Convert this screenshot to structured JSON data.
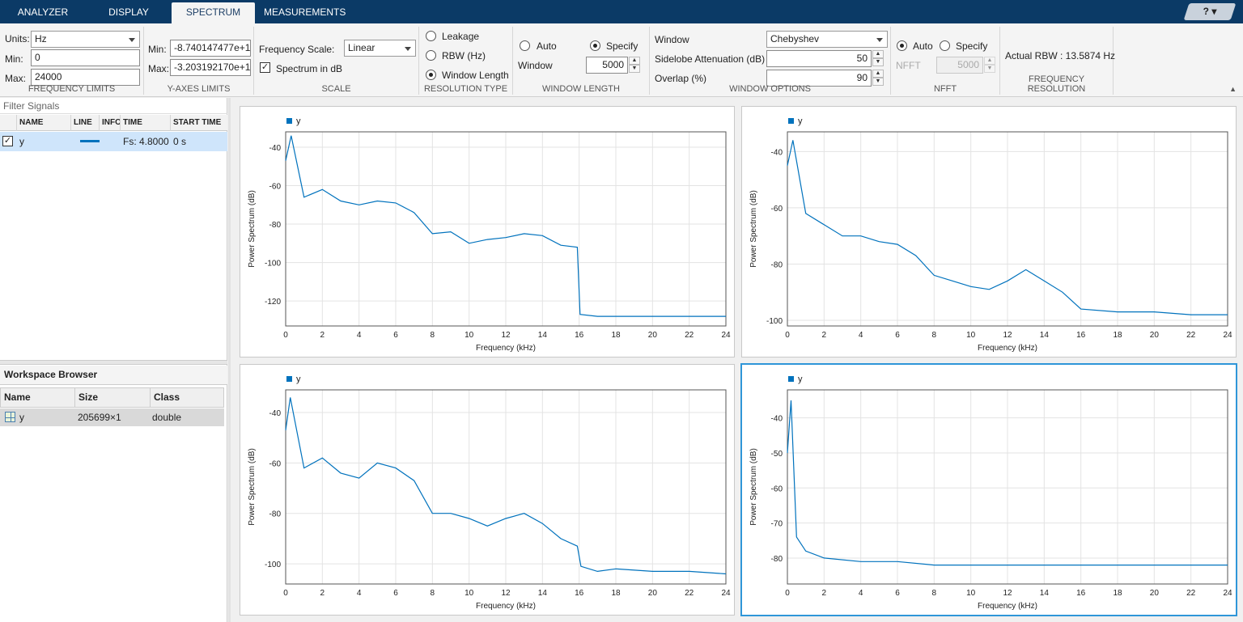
{
  "tabs": [
    {
      "label": "ANALYZER"
    },
    {
      "label": "DISPLAY"
    },
    {
      "label": "SPECTRUM",
      "active": true
    },
    {
      "label": "MEASUREMENTS"
    }
  ],
  "help": {
    "icon": "question-icon",
    "label": "?"
  },
  "ribbon": {
    "frequency_limits": {
      "units_label": "Units:",
      "units_value": "Hz",
      "min_label": "Min:",
      "min_value": "0",
      "max_label": "Max:",
      "max_value": "24000",
      "title": "FREQUENCY LIMITS"
    },
    "y_axes_limits": {
      "min_label": "Min:",
      "min_value": "-8.740147477e+1",
      "max_label": "Max:",
      "max_value": "-3.203192170e+1",
      "title": "Y-AXES LIMITS"
    },
    "scale": {
      "freq_scale_label": "Frequency Scale:",
      "freq_scale_value": "Linear",
      "spectrum_db_label": "Spectrum in dB",
      "spectrum_db_checked": true,
      "title": "SCALE"
    },
    "resolution_type": {
      "options": [
        "Leakage",
        "RBW (Hz)",
        "Window Length"
      ],
      "selected": "Window Length",
      "title": "RESOLUTION TYPE"
    },
    "window_length": {
      "auto_label": "Auto",
      "specify_label": "Specify",
      "selected": "Specify",
      "window_label": "Window",
      "window_value": "5000",
      "title": "WINDOW LENGTH"
    },
    "window_options": {
      "window_label": "Window",
      "window_value": "Chebyshev",
      "sidelobe_label": "Sidelobe Attenuation (dB)",
      "sidelobe_value": "50",
      "overlap_label": "Overlap (%)",
      "overlap_value": "90",
      "title": "WINDOW OPTIONS"
    },
    "nfft": {
      "auto_label": "Auto",
      "specify_label": "Specify",
      "selected": "Auto",
      "nfft_label": "NFFT",
      "nfft_value": "5000",
      "title": "NFFT"
    },
    "frequency_resolution": {
      "text": "Actual RBW : 13.5874 Hz",
      "title": "FREQUENCY RESOLUTION"
    }
  },
  "signal_table": {
    "filter_placeholder": "Filter Signals",
    "columns": [
      "NAME",
      "LINE",
      "INFO",
      "TIME",
      "START TIME"
    ],
    "rows": [
      {
        "checked": true,
        "name": "y",
        "line_color": "#0072bd",
        "time": "Fs: 4.8000",
        "start_time": "0 s"
      }
    ]
  },
  "workspace": {
    "title": "Workspace Browser",
    "columns": [
      "Name",
      "Size",
      "Class"
    ],
    "rows": [
      {
        "name": "y",
        "size": "205699×1",
        "class": "double",
        "icon": "matrix-icon"
      }
    ]
  },
  "colors": {
    "accent": "#0072bd",
    "tabbar": "#0b3a66",
    "selection": "#2f96d8"
  },
  "chart_data": [
    {
      "type": "line",
      "legend": "y",
      "xlabel": "Frequency (kHz)",
      "ylabel": "Power Spectrum (dB)",
      "xlim": [
        0,
        24
      ],
      "ylim": [
        -133,
        -32
      ],
      "xticks": [
        0,
        2,
        4,
        6,
        8,
        10,
        12,
        14,
        16,
        18,
        20,
        22,
        24
      ],
      "yticks": [
        -40,
        -60,
        -80,
        -100,
        -120
      ],
      "series": [
        {
          "x": [
            0,
            0.3,
            1,
            2,
            3,
            4,
            5,
            6,
            7,
            8,
            9,
            10,
            11,
            12,
            13,
            14,
            15,
            15.9,
            16.05,
            17,
            18,
            20,
            22,
            24
          ],
          "y": [
            -47,
            -34,
            -66,
            -62,
            -68,
            -70,
            -68,
            -69,
            -74,
            -85,
            -84,
            -90,
            -88,
            -87,
            -85,
            -86,
            -91,
            -92,
            -127,
            -128,
            -128,
            -128,
            -128,
            -128
          ]
        }
      ]
    },
    {
      "type": "line",
      "legend": "y",
      "xlabel": "Frequency (kHz)",
      "ylabel": "Power Spectrum (dB)",
      "xlim": [
        0,
        24
      ],
      "ylim": [
        -102,
        -33
      ],
      "xticks": [
        0,
        2,
        4,
        6,
        8,
        10,
        12,
        14,
        16,
        18,
        20,
        22,
        24
      ],
      "yticks": [
        -40,
        -60,
        -80,
        -100
      ],
      "series": [
        {
          "x": [
            0,
            0.3,
            1,
            2,
            3,
            4,
            5,
            6,
            7,
            8,
            9,
            10,
            11,
            12,
            13,
            14,
            15,
            16,
            18,
            20,
            22,
            24
          ],
          "y": [
            -45,
            -36,
            -62,
            -66,
            -70,
            -70,
            -72,
            -73,
            -77,
            -84,
            -86,
            -88,
            -89,
            -86,
            -82,
            -86,
            -90,
            -96,
            -97,
            -97,
            -98,
            -98
          ]
        }
      ]
    },
    {
      "type": "line",
      "legend": "y",
      "xlabel": "Frequency (kHz)",
      "ylabel": "Power Spectrum (dB)",
      "xlim": [
        0,
        24
      ],
      "ylim": [
        -108,
        -31
      ],
      "xticks": [
        0,
        2,
        4,
        6,
        8,
        10,
        12,
        14,
        16,
        18,
        20,
        22,
        24
      ],
      "yticks": [
        -40,
        -60,
        -80,
        -100
      ],
      "series": [
        {
          "x": [
            0,
            0.25,
            1,
            2,
            3,
            4,
            5,
            6,
            7,
            8,
            9,
            10,
            11,
            12,
            13,
            14,
            15,
            15.9,
            16.1,
            17,
            18,
            20,
            22,
            24
          ],
          "y": [
            -47,
            -34,
            -62,
            -58,
            -64,
            -66,
            -60,
            -62,
            -67,
            -80,
            -80,
            -82,
            -85,
            -82,
            -80,
            -84,
            -90,
            -93,
            -101,
            -103,
            -102,
            -103,
            -103,
            -104
          ]
        }
      ]
    },
    {
      "type": "line",
      "legend": "y",
      "xlabel": "Frequency (kHz)",
      "ylabel": "Power Spectrum (dB)",
      "xlim": [
        0,
        24
      ],
      "ylim": [
        -87.4,
        -32
      ],
      "xticks": [
        0,
        2,
        4,
        6,
        8,
        10,
        12,
        14,
        16,
        18,
        20,
        22,
        24
      ],
      "yticks": [
        -40,
        -50,
        -60,
        -70,
        -80
      ],
      "series": [
        {
          "x": [
            0,
            0.2,
            0.5,
            1,
            2,
            4,
            6,
            8,
            10,
            12,
            14,
            16,
            18,
            20,
            22,
            24
          ],
          "y": [
            -50,
            -35,
            -74,
            -78,
            -80,
            -81,
            -81,
            -82,
            -82,
            -82,
            -82,
            -82,
            -82,
            -82,
            -82,
            -82
          ]
        }
      ]
    }
  ]
}
